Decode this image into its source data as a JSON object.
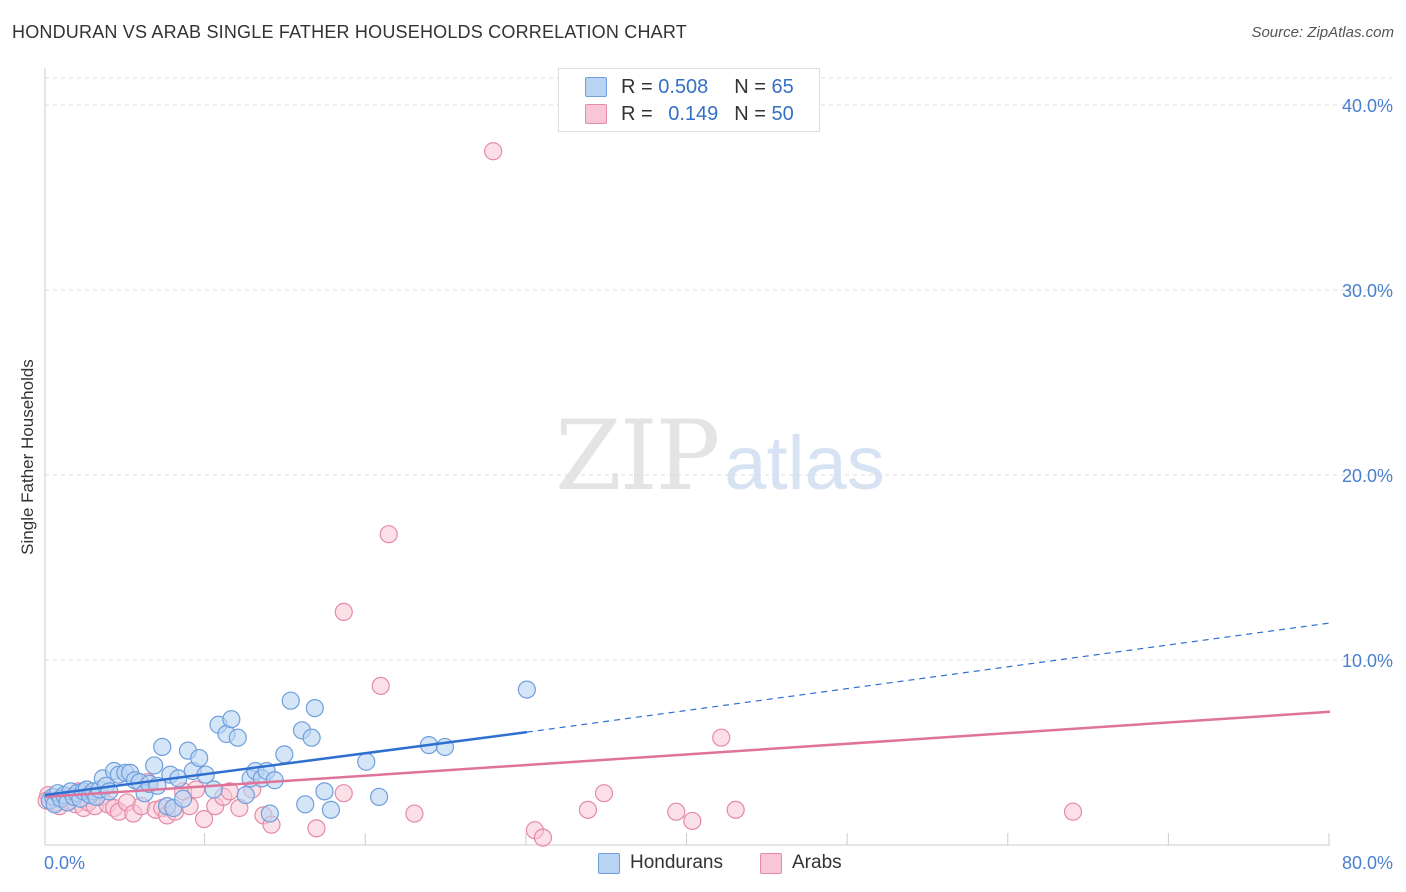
{
  "title": "HONDURAN VS ARAB SINGLE FATHER HOUSEHOLDS CORRELATION CHART",
  "source": "Source: ZipAtlas.com",
  "watermark": {
    "zip": "ZIP",
    "atlas": "atlas"
  },
  "legend": {
    "rows": [
      {
        "r_label": "R =",
        "r_value": "0.508",
        "n_label": "N =",
        "n_value": "65"
      },
      {
        "r_label": "R =",
        "r_value": "0.149",
        "n_label": "N =",
        "n_value": "50"
      }
    ]
  },
  "bottom_legend": [
    "Hondurans",
    "Arabs"
  ],
  "colors": {
    "blue_fill": "#b9d3f3",
    "blue_stroke": "#6f9fdb",
    "blue_line": "#2e6fcf",
    "pink_fill": "#f8c6d6",
    "pink_stroke": "#e58aa8",
    "pink_line": "#e0739a",
    "axis_text": "#4a7fd0",
    "grid": "#dddddd"
  },
  "chart_data": {
    "type": "scatter",
    "title": "HONDURAN VS ARAB SINGLE FATHER HOUSEHOLDS CORRELATION CHART",
    "xlabel": "",
    "ylabel": "Single Father Households",
    "xlim": [
      0,
      80
    ],
    "ylim": [
      0,
      42
    ],
    "x_tick_labels": [
      "0.0%",
      "80.0%"
    ],
    "y_ticks": [
      10,
      20,
      30,
      40
    ],
    "y_tick_labels": [
      "10.0%",
      "20.0%",
      "30.0%",
      "40.0%"
    ],
    "series": [
      {
        "name": "Hondurans",
        "R": 0.508,
        "N": 65,
        "trend": {
          "x0": 0,
          "y0": 2.7,
          "x_solid_end": 30,
          "y_solid_end": 6.1,
          "x_end": 80,
          "y_end": 12.0
        },
        "points": [
          [
            0.3,
            2.4
          ],
          [
            0.5,
            2.6
          ],
          [
            0.6,
            2.2
          ],
          [
            0.8,
            2.8
          ],
          [
            1.0,
            2.5
          ],
          [
            1.2,
            2.7
          ],
          [
            1.4,
            2.3
          ],
          [
            1.6,
            2.9
          ],
          [
            1.8,
            2.6
          ],
          [
            2.0,
            2.8
          ],
          [
            2.2,
            2.5
          ],
          [
            2.4,
            2.9
          ],
          [
            2.6,
            3.0
          ],
          [
            2.8,
            2.7
          ],
          [
            3.0,
            2.9
          ],
          [
            3.2,
            2.6
          ],
          [
            3.4,
            3.0
          ],
          [
            3.6,
            3.6
          ],
          [
            3.8,
            3.2
          ],
          [
            4.0,
            2.9
          ],
          [
            4.3,
            4.0
          ],
          [
            4.6,
            3.8
          ],
          [
            5.0,
            3.9
          ],
          [
            5.3,
            3.9
          ],
          [
            5.6,
            3.5
          ],
          [
            5.9,
            3.4
          ],
          [
            6.2,
            2.8
          ],
          [
            6.5,
            3.3
          ],
          [
            6.8,
            4.3
          ],
          [
            7.0,
            3.2
          ],
          [
            7.3,
            5.3
          ],
          [
            7.6,
            2.1
          ],
          [
            7.8,
            3.8
          ],
          [
            8.0,
            2.0
          ],
          [
            8.3,
            3.6
          ],
          [
            8.6,
            2.5
          ],
          [
            8.9,
            5.1
          ],
          [
            9.2,
            4.0
          ],
          [
            9.6,
            4.7
          ],
          [
            10.0,
            3.8
          ],
          [
            10.5,
            3.0
          ],
          [
            10.8,
            6.5
          ],
          [
            11.3,
            6.0
          ],
          [
            11.6,
            6.8
          ],
          [
            12.0,
            5.8
          ],
          [
            12.5,
            2.7
          ],
          [
            12.8,
            3.6
          ],
          [
            13.1,
            4.0
          ],
          [
            13.5,
            3.6
          ],
          [
            13.8,
            4.0
          ],
          [
            14.0,
            1.7
          ],
          [
            14.3,
            3.5
          ],
          [
            14.9,
            4.9
          ],
          [
            15.3,
            7.8
          ],
          [
            16.0,
            6.2
          ],
          [
            16.2,
            2.2
          ],
          [
            16.6,
            5.8
          ],
          [
            16.8,
            7.4
          ],
          [
            17.4,
            2.9
          ],
          [
            17.8,
            1.9
          ],
          [
            20.0,
            4.5
          ],
          [
            20.8,
            2.6
          ],
          [
            23.9,
            5.4
          ],
          [
            24.9,
            5.3
          ],
          [
            30.0,
            8.4
          ]
        ]
      },
      {
        "name": "Arabs",
        "R": 0.149,
        "N": 50,
        "trend": {
          "x0": 0,
          "y0": 2.6,
          "x_end": 80,
          "y_end": 7.2
        },
        "points": [
          [
            0.2,
            2.7
          ],
          [
            0.6,
            2.3
          ],
          [
            0.9,
            2.1
          ],
          [
            1.2,
            2.6
          ],
          [
            1.5,
            2.4
          ],
          [
            1.9,
            2.2
          ],
          [
            2.1,
            2.9
          ],
          [
            2.4,
            2.0
          ],
          [
            2.7,
            2.3
          ],
          [
            3.1,
            2.1
          ],
          [
            3.5,
            2.6
          ],
          [
            3.9,
            2.2
          ],
          [
            4.3,
            2.0
          ],
          [
            4.6,
            1.8
          ],
          [
            5.1,
            2.3
          ],
          [
            5.5,
            1.7
          ],
          [
            6.0,
            2.1
          ],
          [
            6.4,
            3.4
          ],
          [
            6.9,
            1.9
          ],
          [
            7.3,
            2.0
          ],
          [
            7.6,
            1.6
          ],
          [
            8.1,
            1.8
          ],
          [
            8.6,
            2.9
          ],
          [
            9.0,
            2.1
          ],
          [
            9.4,
            3.0
          ],
          [
            9.9,
            1.4
          ],
          [
            10.6,
            2.1
          ],
          [
            11.1,
            2.6
          ],
          [
            11.5,
            2.9
          ],
          [
            12.1,
            2.0
          ],
          [
            12.9,
            3.0
          ],
          [
            13.6,
            1.6
          ],
          [
            14.1,
            1.1
          ],
          [
            16.9,
            0.9
          ],
          [
            18.6,
            2.8
          ],
          [
            18.6,
            12.6
          ],
          [
            20.9,
            8.6
          ],
          [
            21.4,
            16.8
          ],
          [
            23.0,
            1.7
          ],
          [
            27.9,
            37.5
          ],
          [
            30.5,
            0.8
          ],
          [
            31.0,
            0.4
          ],
          [
            33.8,
            1.9
          ],
          [
            34.8,
            2.8
          ],
          [
            39.3,
            1.8
          ],
          [
            40.3,
            1.3
          ],
          [
            42.1,
            5.8
          ],
          [
            43.0,
            1.9
          ],
          [
            64.0,
            1.8
          ],
          [
            0.1,
            2.4
          ]
        ]
      }
    ]
  }
}
